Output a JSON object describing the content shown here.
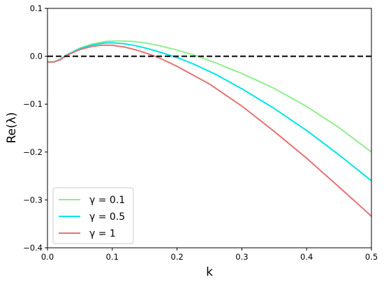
{
  "chart_data": {
    "type": "line",
    "xlabel": "k",
    "ylabel": "Re(λ)",
    "xlim": [
      0.0,
      0.5
    ],
    "ylim": [
      -0.4,
      0.1
    ],
    "x_ticks": [
      "0.0",
      "0.1",
      "0.2",
      "0.3",
      "0.4",
      "0.5"
    ],
    "y_ticks": [
      "0.1",
      "0.0",
      "−0.1",
      "−0.2",
      "−0.3",
      "−0.4"
    ],
    "grid": false,
    "legend_position": "lower-left",
    "reference_line": {
      "y": 0.0,
      "style": "dashed",
      "color": "#000000"
    },
    "series": [
      {
        "name": "γ = 0.1",
        "color": "#90ee90",
        "points": [
          [
            0.0,
            -0.012
          ],
          [
            0.01,
            -0.012
          ],
          [
            0.02,
            -0.006
          ],
          [
            0.03,
            0.003
          ],
          [
            0.05,
            0.017
          ],
          [
            0.07,
            0.026
          ],
          [
            0.09,
            0.031
          ],
          [
            0.11,
            0.032
          ],
          [
            0.13,
            0.031
          ],
          [
            0.15,
            0.028
          ],
          [
            0.17,
            0.023
          ],
          [
            0.2,
            0.013
          ],
          [
            0.23,
            0.001
          ],
          [
            0.26,
            -0.014
          ],
          [
            0.3,
            -0.036
          ],
          [
            0.35,
            -0.067
          ],
          [
            0.4,
            -0.105
          ],
          [
            0.45,
            -0.149
          ],
          [
            0.5,
            -0.2
          ]
        ]
      },
      {
        "name": "γ = 0.5",
        "color": "#00e5e5",
        "points": [
          [
            0.0,
            -0.012
          ],
          [
            0.01,
            -0.012
          ],
          [
            0.02,
            -0.006
          ],
          [
            0.03,
            0.003
          ],
          [
            0.05,
            0.016
          ],
          [
            0.07,
            0.024
          ],
          [
            0.09,
            0.028
          ],
          [
            0.1,
            0.028
          ],
          [
            0.12,
            0.026
          ],
          [
            0.14,
            0.021
          ],
          [
            0.16,
            0.014
          ],
          [
            0.18,
            0.006
          ],
          [
            0.205,
            -0.005
          ],
          [
            0.23,
            -0.019
          ],
          [
            0.26,
            -0.038
          ],
          [
            0.3,
            -0.068
          ],
          [
            0.35,
            -0.109
          ],
          [
            0.4,
            -0.155
          ],
          [
            0.45,
            -0.206
          ],
          [
            0.5,
            -0.26
          ]
        ]
      },
      {
        "name": "γ = 1",
        "color": "#e57373",
        "points": [
          [
            0.0,
            -0.012
          ],
          [
            0.01,
            -0.012
          ],
          [
            0.02,
            -0.007
          ],
          [
            0.03,
            0.002
          ],
          [
            0.05,
            0.014
          ],
          [
            0.07,
            0.021
          ],
          [
            0.085,
            0.023
          ],
          [
            0.1,
            0.023
          ],
          [
            0.12,
            0.019
          ],
          [
            0.14,
            0.012
          ],
          [
            0.16,
            0.003
          ],
          [
            0.175,
            -0.005
          ],
          [
            0.2,
            -0.021
          ],
          [
            0.25,
            -0.058
          ],
          [
            0.3,
            -0.104
          ],
          [
            0.35,
            -0.157
          ],
          [
            0.4,
            -0.213
          ],
          [
            0.45,
            -0.273
          ],
          [
            0.5,
            -0.334
          ]
        ]
      }
    ]
  }
}
